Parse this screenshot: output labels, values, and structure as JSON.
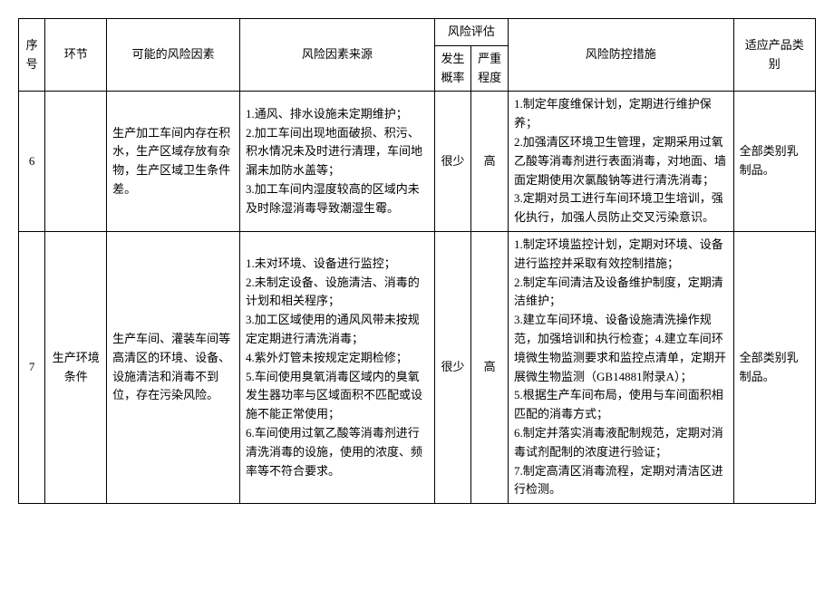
{
  "headers": {
    "seq": "序号",
    "phase": "环节",
    "factor": "可能的风险因素",
    "source": "风险因素来源",
    "assess": "风险评估",
    "prob": "发生概率",
    "sev": "严重程度",
    "ctrl": "风险防控措施",
    "prod": "适应产品类别"
  },
  "rows": [
    {
      "seq": "6",
      "phase": "",
      "factor": "生产加工车间内存在积水，生产区域存放有杂物，生产区域卫生条件差。",
      "source": "1.通风、排水设施未定期维护；\n2.加工车间出现地面破损、积污、积水情况未及时进行清理，车间地漏未加防水盖等；\n3.加工车间内湿度较高的区域内未及时除湿消毒导致潮湿生霉。",
      "prob": "很少",
      "sev": "高",
      "ctrl": "1.制定年度维保计划，定期进行维护保养；\n2.加强清区环境卫生管理，定期采用过氧乙酸等消毒剂进行表面消毒，对地面、墙面定期使用次氯酸钠等进行清洗消毒；\n3.定期对员工进行车间环境卫生培训，强化执行，加强人员防止交叉污染意识。",
      "prod": "全部类别乳制品。"
    },
    {
      "seq": "7",
      "phase": "生产环境条件",
      "factor": "生产车间、灌装车间等高清区的环境、设备、设施清洁和消毒不到位，存在污染风险。",
      "source": "1.未对环境、设备进行监控；\n2.未制定设备、设施清洁、消毒的计划和相关程序；\n3.加工区域使用的通风风带未按规定定期进行清洗消毒；\n4.紫外灯管未按规定定期检修；\n5.车间使用臭氧消毒区域内的臭氧发生器功率与区域面积不匹配或设施不能正常使用；\n6.车间使用过氧乙酸等消毒剂进行清洗消毒的设施，使用的浓度、频率等不符合要求。",
      "prob": "很少",
      "sev": "高",
      "ctrl": "1.制定环境监控计划，定期对环境、设备进行监控并采取有效控制措施；\n2.制定车间清洁及设备维护制度，定期清洁维护；\n3.建立车间环境、设备设施清洗操作规范，加强培训和执行检查；4.建立车间环境微生物监测要求和监控点清单，定期开展微生物监测（GB14881附录A）；\n5.根据生产车间布局，使用与车间面积相匹配的消毒方式；\n6.制定并落实消毒液配制规范，定期对消毒试剂配制的浓度进行验证；\n7.制定高清区消毒流程，定期对清洁区进行检测。",
      "prod": "全部类别乳制品。"
    }
  ]
}
